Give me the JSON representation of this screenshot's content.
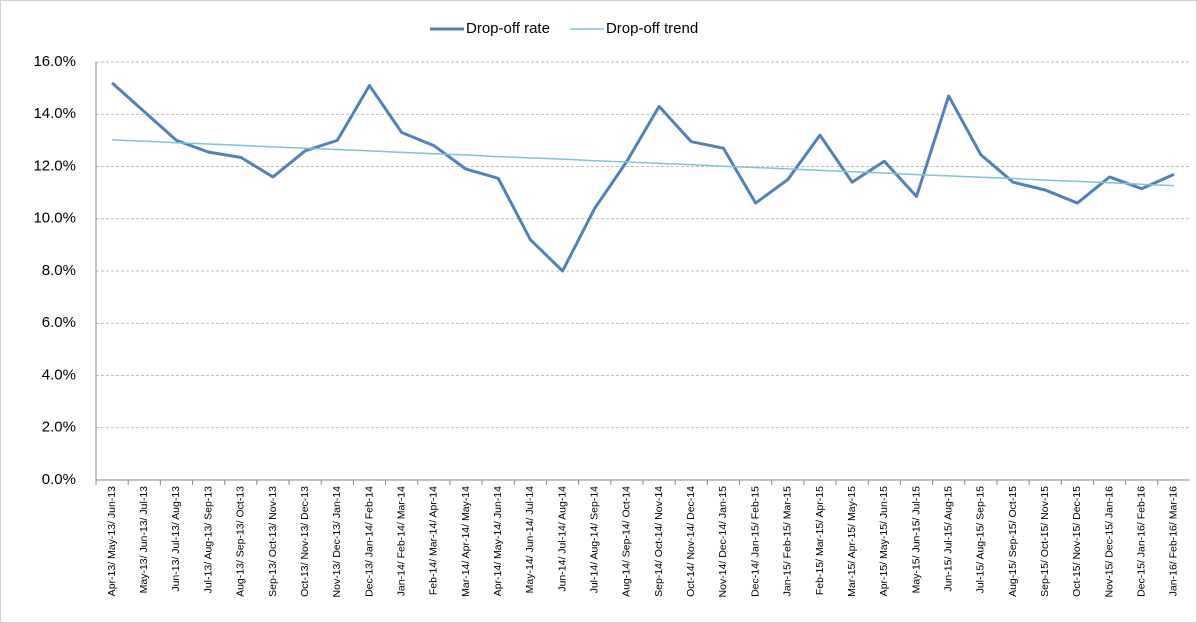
{
  "chart_data": {
    "type": "line",
    "categories": [
      "Apr-13/ May-13/ Jun-13",
      "May-13/ Jun-13/ Jul-13",
      "Jun-13/ Jul-13/ Aug-13",
      "Jul-13/ Aug-13/ Sep-13",
      "Aug-13/ Sep-13/ Oct-13",
      "Sep-13/ Oct-13/ Nov-13",
      "Oct-13/ Nov-13/ Dec-13",
      "Nov-13/ Dec-13/ Jan-14",
      "Dec-13/ Jan-14/ Feb-14",
      "Jan-14/ Feb-14/ Mar-14",
      "Feb-14/ Mar-14/ Apr-14",
      "Mar-14/ Apr-14/ May-14",
      "Apr-14/ May-14/ Jun-14",
      "May-14/ Jun-14/ Jul-14",
      "Jun-14/ Jul-14/ Aug-14",
      "Jul-14/ Aug-14/ Sep-14",
      "Aug-14/ Sep-14/ Oct-14",
      "Sep-14/ Oct-14/ Nov-14",
      "Oct-14/ Nov-14/ Dec-14",
      "Nov-14/ Dec-14/ Jan-15",
      "Dec-14/ Jan-15/ Feb-15",
      "Jan-15/ Feb-15/ Mar-15",
      "Feb-15/ Mar-15/ Apr-15",
      "Mar-15/ Apr-15/ May-15",
      "Apr-15/ May-15/ Jun-15",
      "May-15/ Jun-15/ Jul-15",
      "Jun-15/ Jul-15/ Aug-15",
      "Jul-15/ Aug-15/ Sep-15",
      "Aug-15/ Sep-15/ Oct-15",
      "Sep-15/ Oct-15/ Nov-15",
      "Oct-15/ Nov-15/ Dec-15",
      "Nov-15/ Dec-15/ Jan-16",
      "Dec-15/ Jan-16/ Feb-16",
      "Jan-16/ Feb-16/ Mar-16"
    ],
    "series": [
      {
        "name": "Drop-off rate",
        "color": "#4f81bd",
        "values": [
          15.2,
          14.1,
          13.0,
          12.55,
          12.35,
          11.6,
          12.6,
          13.0,
          15.1,
          13.3,
          12.8,
          11.9,
          11.55,
          9.2,
          8.0,
          10.4,
          12.2,
          14.3,
          12.95,
          12.7,
          10.6,
          11.5,
          13.2,
          11.4,
          12.2,
          10.85,
          14.7,
          12.45,
          11.4,
          11.1,
          10.6,
          11.6,
          11.15,
          11.7
        ]
      },
      {
        "name": "Drop-off trend",
        "color": "#7ec5d1",
        "values": [
          13.02,
          12.97,
          12.91,
          12.86,
          12.81,
          12.75,
          12.7,
          12.65,
          12.6,
          12.54,
          12.49,
          12.44,
          12.38,
          12.33,
          12.28,
          12.22,
          12.17,
          12.12,
          12.07,
          12.01,
          11.96,
          11.91,
          11.85,
          11.8,
          11.75,
          11.69,
          11.64,
          11.59,
          11.54,
          11.48,
          11.43,
          11.38,
          11.32,
          11.27
        ]
      }
    ],
    "ylim": [
      0,
      16
    ],
    "yticks": [
      {
        "value": 0,
        "label": "0.0%"
      },
      {
        "value": 2,
        "label": "2.0%"
      },
      {
        "value": 4,
        "label": "4.0%"
      },
      {
        "value": 6,
        "label": "6.0%"
      },
      {
        "value": 8,
        "label": "8.0%"
      },
      {
        "value": 10,
        "label": "10.0%"
      },
      {
        "value": 12,
        "label": "12.0%"
      },
      {
        "value": 14,
        "label": "14.0%"
      },
      {
        "value": 16,
        "label": "16.0%"
      }
    ],
    "grid": true,
    "legend": "top"
  }
}
